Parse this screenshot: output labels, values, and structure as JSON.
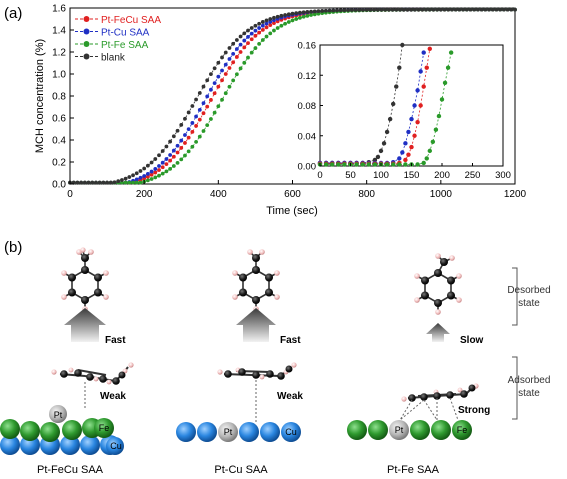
{
  "panel_a_label": "(a)",
  "panel_b_label": "(b)",
  "chart_data": [
    {
      "type": "scatter",
      "xlabel": "Time (sec)",
      "ylabel": "MCH concentration (%)",
      "xlim": [
        0,
        1200
      ],
      "ylim": [
        0,
        1.6
      ],
      "xticks": [
        0,
        200,
        400,
        600,
        800,
        1000,
        1200
      ],
      "yticks": [
        0.0,
        0.2,
        0.4,
        0.6,
        0.8,
        1.0,
        1.2,
        1.4,
        1.6
      ],
      "ytick_labels": [
        "0.0",
        "0.2",
        "0.4",
        "0.6",
        "0.8",
        "1.0",
        "1.2",
        "1.4",
        "1.6"
      ],
      "legend_position": "top-left",
      "series": [
        {
          "name": "Pt-FeCu SAA",
          "color": "#e02020",
          "onset": 155,
          "x50": 380,
          "k": 0.0148
        },
        {
          "name": "Pt-Cu SAA",
          "color": "#1f2fc4",
          "onset": 140,
          "x50": 365,
          "k": 0.015
        },
        {
          "name": "Pt-Fe SAA",
          "color": "#2a9a2a",
          "onset": 175,
          "x50": 410,
          "k": 0.0145
        },
        {
          "name": "blank",
          "color": "#333333",
          "onset": 100,
          "x50": 340,
          "k": 0.0145
        }
      ]
    },
    {
      "type": "scatter",
      "role": "inset",
      "xlim": [
        0,
        300
      ],
      "ylim": [
        0,
        0.16
      ],
      "xticks": [
        0,
        50,
        100,
        150,
        200,
        250,
        300
      ],
      "yticks": [
        0.0,
        0.04,
        0.08,
        0.12,
        0.16
      ],
      "ytick_labels": [
        "0.00",
        "0.04",
        "0.08",
        "0.12",
        "0.16"
      ],
      "series": [
        {
          "name": "blank",
          "color": "#333333",
          "x": [
            0,
            10,
            20,
            30,
            40,
            50,
            60,
            70,
            80,
            90,
            95,
            100,
            105,
            110,
            115,
            120,
            125,
            130,
            135
          ],
          "y": [
            0.004,
            0.004,
            0.004,
            0.004,
            0.004,
            0.004,
            0.004,
            0.004,
            0.005,
            0.008,
            0.012,
            0.02,
            0.03,
            0.045,
            0.062,
            0.082,
            0.105,
            0.13,
            0.16
          ]
        },
        {
          "name": "Pt-Cu SAA",
          "color": "#1f2fc4",
          "x": [
            0,
            10,
            20,
            30,
            40,
            50,
            60,
            70,
            80,
            90,
            100,
            110,
            120,
            130,
            135,
            140,
            145,
            150,
            155,
            160,
            165,
            170
          ],
          "y": [
            0.004,
            0.004,
            0.004,
            0.004,
            0.004,
            0.004,
            0.004,
            0.004,
            0.004,
            0.004,
            0.004,
            0.004,
            0.005,
            0.01,
            0.018,
            0.03,
            0.045,
            0.062,
            0.08,
            0.1,
            0.125,
            0.15
          ]
        },
        {
          "name": "Pt-FeCu SAA",
          "color": "#e02020",
          "x": [
            0,
            10,
            20,
            30,
            40,
            50,
            60,
            70,
            80,
            90,
            100,
            110,
            120,
            130,
            140,
            145,
            150,
            155,
            160,
            165,
            170,
            175,
            180
          ],
          "y": [
            0.003,
            0.003,
            0.003,
            0.003,
            0.003,
            0.003,
            0.003,
            0.003,
            0.003,
            0.003,
            0.003,
            0.003,
            0.003,
            0.004,
            0.008,
            0.015,
            0.025,
            0.04,
            0.058,
            0.08,
            0.105,
            0.13,
            0.155
          ]
        },
        {
          "name": "Pt-Fe SAA",
          "color": "#2a9a2a",
          "x": [
            0,
            10,
            20,
            30,
            40,
            50,
            60,
            70,
            80,
            90,
            100,
            110,
            120,
            130,
            140,
            150,
            160,
            170,
            175,
            180,
            185,
            190,
            195,
            200,
            205,
            210,
            215
          ],
          "y": [
            0.002,
            0.002,
            0.002,
            0.002,
            0.002,
            0.002,
            0.002,
            0.002,
            0.002,
            0.002,
            0.002,
            0.002,
            0.002,
            0.002,
            0.002,
            0.002,
            0.002,
            0.004,
            0.01,
            0.02,
            0.032,
            0.048,
            0.066,
            0.088,
            0.11,
            0.13,
            0.15
          ]
        }
      ]
    }
  ],
  "panel_b": {
    "state_labels": {
      "desorbed": [
        "Desorbed",
        "state"
      ],
      "adsorbed": [
        "Adsorbed",
        "state"
      ]
    },
    "columns": [
      {
        "name": "Pt-FeCu SAA",
        "speed": "Fast",
        "interaction": "Weak",
        "atoms": [
          "Pt",
          "Fe",
          "Cu"
        ]
      },
      {
        "name": "Pt-Cu SAA",
        "speed": "Fast",
        "interaction": "Weak",
        "atoms": [
          "Pt",
          "Cu"
        ]
      },
      {
        "name": "Pt-Fe SAA",
        "speed": "Slow",
        "interaction": "Strong",
        "atoms": [
          "Pt",
          "Fe"
        ]
      }
    ]
  }
}
